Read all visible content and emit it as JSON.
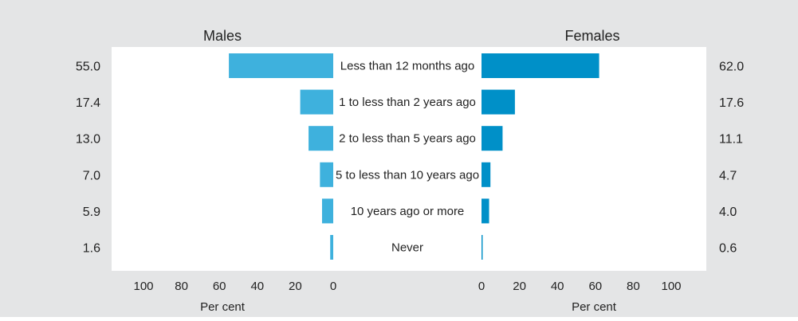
{
  "chart_data": {
    "type": "bar",
    "orientation": "horizontal",
    "layout": "back-to-back",
    "categories": [
      "Less than 12 months ago",
      "1 to less than 2 years ago",
      "2 to less than 5 years ago",
      "5 to less than 10 years ago",
      "10 years ago or more",
      "Never"
    ],
    "series": [
      {
        "name": "Males",
        "values": [
          55.0,
          17.4,
          13.0,
          7.0,
          5.9,
          1.6
        ],
        "value_labels": [
          "55.0",
          "17.4",
          "13.0",
          "7.0",
          "5.9",
          "1.6"
        ],
        "color": "#3eb1dd",
        "direction": "left"
      },
      {
        "name": "Females",
        "values": [
          62.0,
          17.6,
          11.1,
          4.7,
          4.0,
          0.6
        ],
        "value_labels": [
          "62.0",
          "17.6",
          "11.1",
          "4.7",
          "4.0",
          "0.6"
        ],
        "color": "#0090c8",
        "direction": "right"
      }
    ],
    "xlabel": "Per cent",
    "xlim": [
      0,
      120
    ],
    "ticks": [
      0,
      20,
      40,
      60,
      80,
      100
    ],
    "grid": false,
    "legend": "none"
  },
  "colors": {
    "frame_background": "#e4e5e6",
    "plot_background": "#ffffff"
  }
}
